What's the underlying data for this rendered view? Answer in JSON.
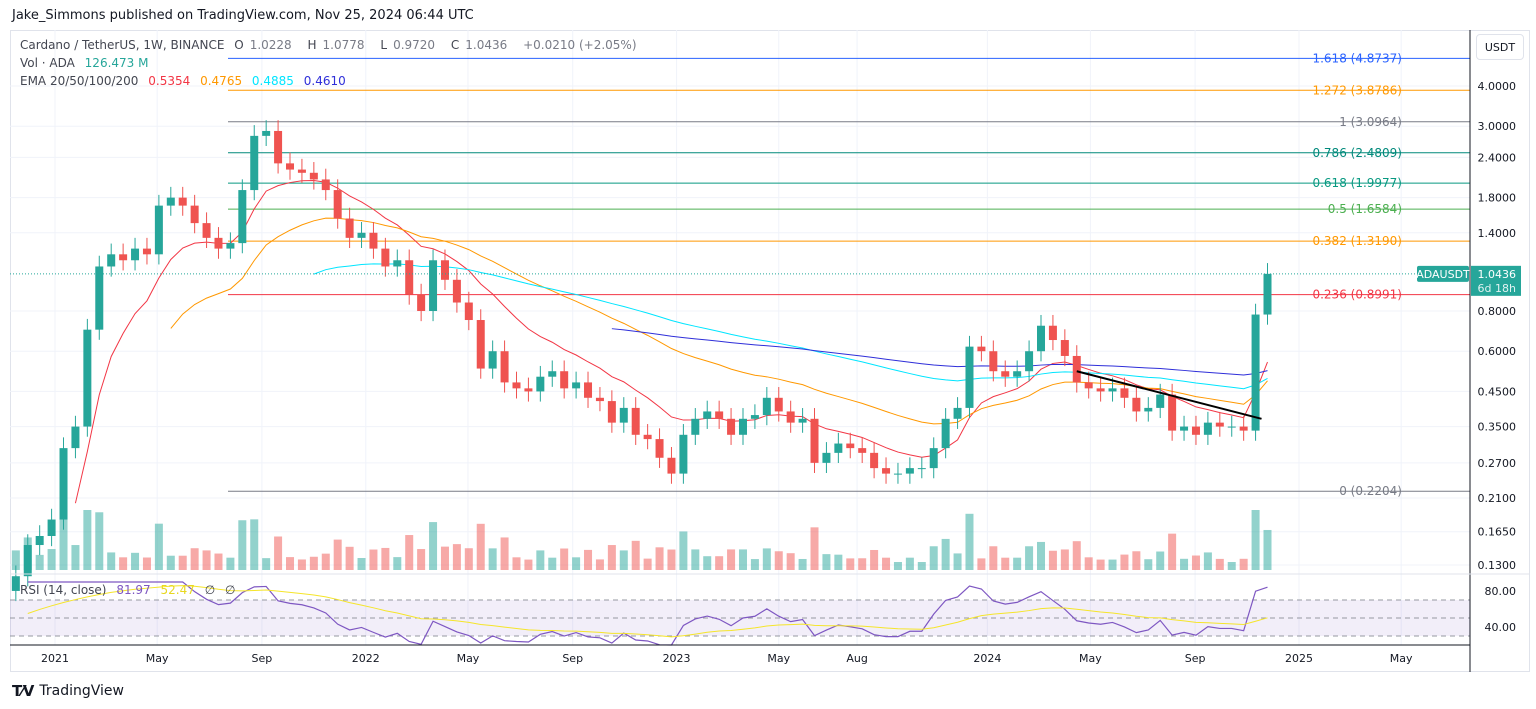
{
  "header": {
    "published": "Jake_Simmons published on TradingView.com, Nov 25, 2024 06:44 UTC"
  },
  "legend": {
    "symbol": "Cardano / TetherUS, 1W, BINANCE",
    "o_label": "O",
    "o": "1.0228",
    "h_label": "H",
    "h": "1.0778",
    "l_label": "L",
    "l": "0.9720",
    "c_label": "C",
    "c": "1.0436",
    "change": "+0.0210 (+2.05%)",
    "vol_label": "Vol · ADA",
    "vol": "126.473 M",
    "ema_label": "EMA 20/50/100/200",
    "ema20": "0.5354",
    "ema50": "0.4765",
    "ema100": "0.4885",
    "ema200": "0.4610",
    "rsi_label": "RSI (14, close)",
    "rsi": "81.97",
    "rsi_ma": "52.47",
    "rsi_na1": "∅",
    "rsi_na2": "∅"
  },
  "price_axis": {
    "currency": "USDT",
    "ticks": [
      "4.0000",
      "3.0000",
      "2.4000",
      "1.8000",
      "1.4000",
      "0.8000",
      "0.6000",
      "0.4500",
      "0.3500",
      "0.2700",
      "0.2100",
      "0.1650",
      "0.1300"
    ],
    "last_symbol": "ADAUSDT",
    "last_price": "1.0436",
    "countdown": "6d 18h"
  },
  "rsi_axis": {
    "ticks": [
      "80.00",
      "40.00"
    ]
  },
  "time_axis": [
    {
      "label": "2021",
      "date": "2021-01-01"
    },
    {
      "label": "May",
      "date": "2021-05-01"
    },
    {
      "label": "Sep",
      "date": "2021-09-01"
    },
    {
      "label": "2022",
      "date": "2022-01-01"
    },
    {
      "label": "May",
      "date": "2022-05-01"
    },
    {
      "label": "Sep",
      "date": "2022-09-01"
    },
    {
      "label": "2023",
      "date": "2023-01-01"
    },
    {
      "label": "May",
      "date": "2023-05-01"
    },
    {
      "label": "Aug",
      "date": "2023-08-01"
    },
    {
      "label": "2024",
      "date": "2024-01-01"
    },
    {
      "label": "May",
      "date": "2024-05-01"
    },
    {
      "label": "Sep",
      "date": "2024-09-01"
    },
    {
      "label": "2025",
      "date": "2025-01-01"
    },
    {
      "label": "May",
      "date": "2025-05-01"
    }
  ],
  "brand": {
    "name": "TradingView"
  },
  "colors": {
    "up": "#26a69a",
    "down": "#ef5350",
    "ema20": "#f23645",
    "ema50": "#ff9800",
    "ema100": "#00e5ff",
    "ema200": "#2f2fd9",
    "rsi": "#7e57c2",
    "rsi_ma": "#f5e52a",
    "trend": "#000000"
  },
  "chart_data": {
    "type": "candlestick",
    "scale": "log",
    "ylim": [
      0.13,
      4.0
    ],
    "fib_levels": [
      {
        "ratio": "1.618",
        "value": 4.8737,
        "label": "1.618 (4.8737)",
        "color": "#2962ff"
      },
      {
        "ratio": "1.272",
        "value": 3.8786,
        "label": "1.272 (3.8786)",
        "color": "#ff9800"
      },
      {
        "ratio": "1",
        "value": 3.0964,
        "label": "1 (3.0964)",
        "color": "#787b86"
      },
      {
        "ratio": "0.786",
        "value": 2.4809,
        "label": "0.786 (2.4809)",
        "color": "#00897b"
      },
      {
        "ratio": "0.618",
        "value": 1.9977,
        "label": "0.618 (1.9977)",
        "color": "#089981"
      },
      {
        "ratio": "0.5",
        "value": 1.6584,
        "label": "0.5 (1.6584)",
        "color": "#4caf50"
      },
      {
        "ratio": "0.382",
        "value": 1.319,
        "label": "0.382 (1.3190)",
        "color": "#ff9800"
      },
      {
        "ratio": "0.236",
        "value": 0.8991,
        "label": "0.236 (0.8991)",
        "color": "#f23645"
      },
      {
        "ratio": "0",
        "value": 0.2204,
        "label": "0 (0.2204)",
        "color": "#787b86"
      }
    ],
    "trendline": [
      [
        "2024-04-15",
        0.52
      ],
      [
        "2024-11-18",
        0.37
      ]
    ],
    "closes": [
      [
        "2020-11-16",
        0.12
      ],
      [
        "2020-11-30",
        0.15
      ],
      [
        "2020-12-14",
        0.16
      ],
      [
        "2020-12-28",
        0.18
      ],
      [
        "2021-01-11",
        0.3
      ],
      [
        "2021-01-25",
        0.35
      ],
      [
        "2021-02-08",
        0.7
      ],
      [
        "2021-02-22",
        1.1
      ],
      [
        "2021-03-08",
        1.2
      ],
      [
        "2021-03-22",
        1.15
      ],
      [
        "2021-04-05",
        1.25
      ],
      [
        "2021-04-19",
        1.2
      ],
      [
        "2021-05-03",
        1.7
      ],
      [
        "2021-05-17",
        1.8
      ],
      [
        "2021-05-31",
        1.7
      ],
      [
        "2021-06-14",
        1.5
      ],
      [
        "2021-06-28",
        1.35
      ],
      [
        "2021-07-12",
        1.25
      ],
      [
        "2021-07-26",
        1.3
      ],
      [
        "2021-08-09",
        1.9
      ],
      [
        "2021-08-23",
        2.8
      ],
      [
        "2021-09-06",
        2.9
      ],
      [
        "2021-09-20",
        2.3
      ],
      [
        "2021-10-04",
        2.2
      ],
      [
        "2021-10-18",
        2.15
      ],
      [
        "2021-11-01",
        2.05
      ],
      [
        "2021-11-15",
        1.9
      ],
      [
        "2021-11-29",
        1.55
      ],
      [
        "2021-12-13",
        1.35
      ],
      [
        "2021-12-27",
        1.4
      ],
      [
        "2022-01-10",
        1.25
      ],
      [
        "2022-01-24",
        1.1
      ],
      [
        "2022-02-07",
        1.15
      ],
      [
        "2022-02-21",
        0.9
      ],
      [
        "2022-03-07",
        0.8
      ],
      [
        "2022-03-21",
        1.15
      ],
      [
        "2022-04-04",
        1.0
      ],
      [
        "2022-04-18",
        0.85
      ],
      [
        "2022-05-02",
        0.75
      ],
      [
        "2022-05-16",
        0.53
      ],
      [
        "2022-05-30",
        0.6
      ],
      [
        "2022-06-13",
        0.48
      ],
      [
        "2022-06-27",
        0.46
      ],
      [
        "2022-07-11",
        0.45
      ],
      [
        "2022-07-25",
        0.5
      ],
      [
        "2022-08-08",
        0.52
      ],
      [
        "2022-08-22",
        0.46
      ],
      [
        "2022-09-05",
        0.48
      ],
      [
        "2022-09-19",
        0.43
      ],
      [
        "2022-10-03",
        0.42
      ],
      [
        "2022-10-17",
        0.36
      ],
      [
        "2022-10-31",
        0.4
      ],
      [
        "2022-11-14",
        0.33
      ],
      [
        "2022-11-28",
        0.32
      ],
      [
        "2022-12-12",
        0.28
      ],
      [
        "2022-12-26",
        0.25
      ],
      [
        "2023-01-09",
        0.33
      ],
      [
        "2023-01-23",
        0.37
      ],
      [
        "2023-02-06",
        0.39
      ],
      [
        "2023-02-20",
        0.37
      ],
      [
        "2023-03-06",
        0.33
      ],
      [
        "2023-03-20",
        0.37
      ],
      [
        "2023-04-03",
        0.38
      ],
      [
        "2023-04-17",
        0.43
      ],
      [
        "2023-05-01",
        0.39
      ],
      [
        "2023-05-15",
        0.36
      ],
      [
        "2023-05-29",
        0.37
      ],
      [
        "2023-06-12",
        0.27
      ],
      [
        "2023-06-26",
        0.29
      ],
      [
        "2023-07-10",
        0.31
      ],
      [
        "2023-07-24",
        0.3
      ],
      [
        "2023-08-07",
        0.29
      ],
      [
        "2023-08-21",
        0.26
      ],
      [
        "2023-09-04",
        0.25
      ],
      [
        "2023-09-18",
        0.25
      ],
      [
        "2023-10-02",
        0.26
      ],
      [
        "2023-10-16",
        0.26
      ],
      [
        "2023-10-30",
        0.3
      ],
      [
        "2023-11-13",
        0.37
      ],
      [
        "2023-11-27",
        0.4
      ],
      [
        "2023-12-11",
        0.62
      ],
      [
        "2023-12-25",
        0.6
      ],
      [
        "2024-01-08",
        0.52
      ],
      [
        "2024-01-22",
        0.5
      ],
      [
        "2024-02-05",
        0.52
      ],
      [
        "2024-02-19",
        0.6
      ],
      [
        "2024-03-04",
        0.72
      ],
      [
        "2024-03-18",
        0.65
      ],
      [
        "2024-04-01",
        0.58
      ],
      [
        "2024-04-15",
        0.48
      ],
      [
        "2024-04-29",
        0.46
      ],
      [
        "2024-05-13",
        0.45
      ],
      [
        "2024-05-27",
        0.46
      ],
      [
        "2024-06-10",
        0.43
      ],
      [
        "2024-06-24",
        0.39
      ],
      [
        "2024-07-08",
        0.4
      ],
      [
        "2024-07-22",
        0.44
      ],
      [
        "2024-08-05",
        0.34
      ],
      [
        "2024-08-19",
        0.35
      ],
      [
        "2024-09-02",
        0.33
      ],
      [
        "2024-09-16",
        0.36
      ],
      [
        "2024-09-30",
        0.35
      ],
      [
        "2024-10-14",
        0.35
      ],
      [
        "2024-10-28",
        0.34
      ],
      [
        "2024-11-11",
        0.78
      ],
      [
        "2024-11-25",
        1.0436
      ]
    ]
  }
}
